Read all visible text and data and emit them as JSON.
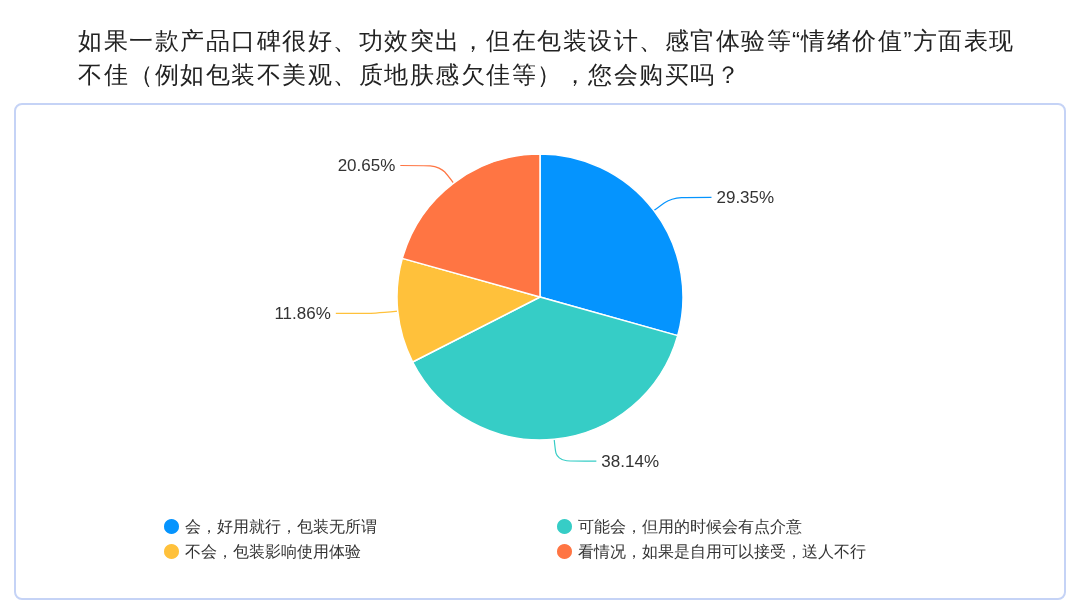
{
  "chart_data": {
    "type": "pie",
    "title": "如果一款产品口碑很好、功效突出，但在包装设计、感官体验等“情绪价值”方面表现不佳（例如包装不美观、质地肤感欠佳等），您会购买吗？",
    "categories": [
      "会，好用就行，包装无所谓",
      "可能会，但用的时候会有点介意",
      "不会，包装影响使用体验",
      "看情况，如果是自用可以接受，送人不行"
    ],
    "values": [
      29.35,
      38.14,
      11.86,
      20.65
    ],
    "colors": [
      "#0594fe",
      "#36cdc6",
      "#ffc13b",
      "#ff7543"
    ],
    "value_labels": [
      "29.35%",
      "38.14%",
      "11.86%",
      "20.65%"
    ],
    "legend": "bottom"
  }
}
